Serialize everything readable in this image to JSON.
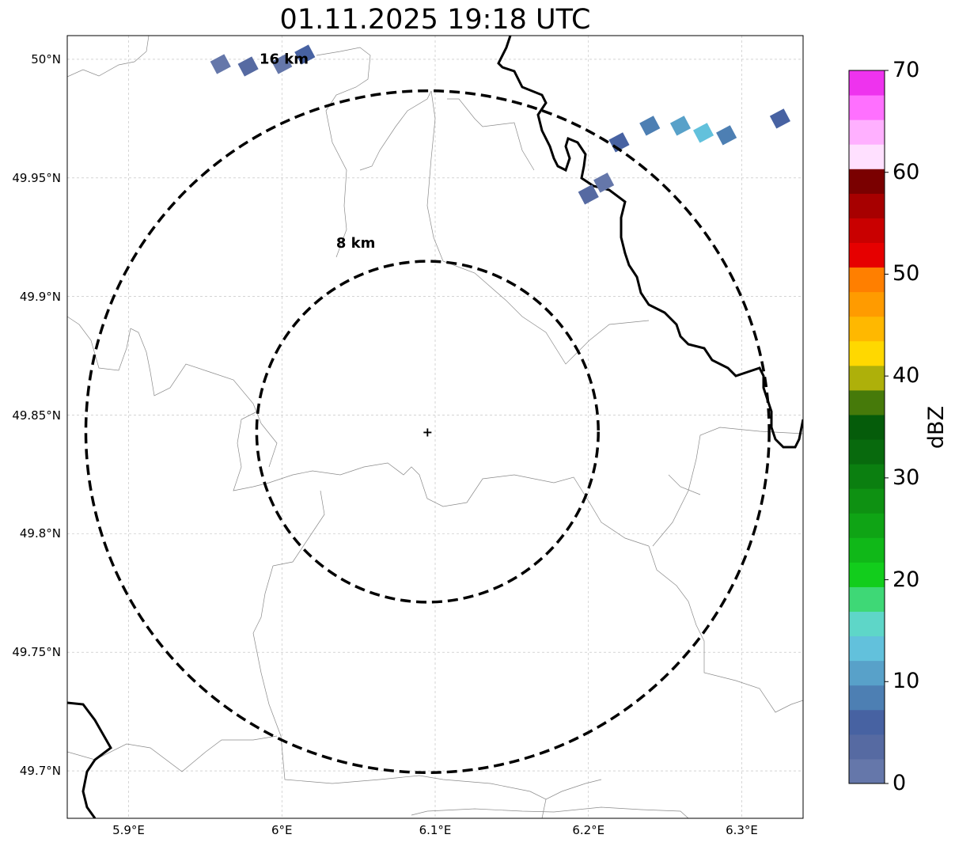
{
  "title": "01.11.2025 19:18 UTC",
  "axes": {
    "x_ticks": [
      "5.9°E",
      "6°E",
      "6.1°E",
      "6.2°E",
      "6.3°E"
    ],
    "y_ticks": [
      "50°N",
      "49.95°N",
      "49.9°N",
      "49.85°N",
      "49.8°N",
      "49.75°N",
      "49.7°N"
    ],
    "lon_range": [
      5.86,
      6.34
    ],
    "lat_range": [
      49.68,
      50.01
    ],
    "gridlines": true
  },
  "radar": {
    "center": {
      "lon": 6.095,
      "lat": 49.843
    },
    "rings": [
      {
        "radius_km": 8,
        "label": "8 km"
      },
      {
        "radius_km": 16,
        "label": "16 km"
      }
    ]
  },
  "reflectivity_cells": [
    {
      "lon": 5.96,
      "lat": 49.998,
      "dbz": 2
    },
    {
      "lon": 5.978,
      "lat": 49.997,
      "dbz": 3
    },
    {
      "lon": 6.0,
      "lat": 49.998,
      "dbz": 2
    },
    {
      "lon": 6.015,
      "lat": 50.002,
      "dbz": 5
    },
    {
      "lon": 6.22,
      "lat": 49.965,
      "dbz": 5
    },
    {
      "lon": 6.24,
      "lat": 49.972,
      "dbz": 8
    },
    {
      "lon": 6.26,
      "lat": 49.972,
      "dbz": 10
    },
    {
      "lon": 6.275,
      "lat": 49.969,
      "dbz": 13
    },
    {
      "lon": 6.29,
      "lat": 49.968,
      "dbz": 9
    },
    {
      "lon": 6.325,
      "lat": 49.975,
      "dbz": 6
    },
    {
      "lon": 6.2,
      "lat": 49.943,
      "dbz": 3
    },
    {
      "lon": 6.21,
      "lat": 49.948,
      "dbz": 2
    }
  ],
  "colorbar": {
    "label": "dBZ",
    "ticks": [
      "0",
      "10",
      "20",
      "30",
      "40",
      "50",
      "60",
      "70"
    ],
    "range": [
      0,
      70
    ],
    "colors": [
      "#6577aa",
      "#566aa2",
      "#4762a2",
      "#4d7fb3",
      "#58a1c9",
      "#62c1dc",
      "#5ed6c8",
      "#3ed876",
      "#12cd1c",
      "#10b818",
      "#0fa415",
      "#0e9112",
      "#0b7f10",
      "#086a0d",
      "#055c0a",
      "#467a0a",
      "#aeb00a",
      "#ffd800",
      "#ffb800",
      "#ff9b00",
      "#ff7f00",
      "#e60000",
      "#c90000",
      "#a70000",
      "#7a0000",
      "#ffe0ff",
      "#ffb0ff",
      "#ff70ff",
      "#ee33ee"
    ]
  }
}
